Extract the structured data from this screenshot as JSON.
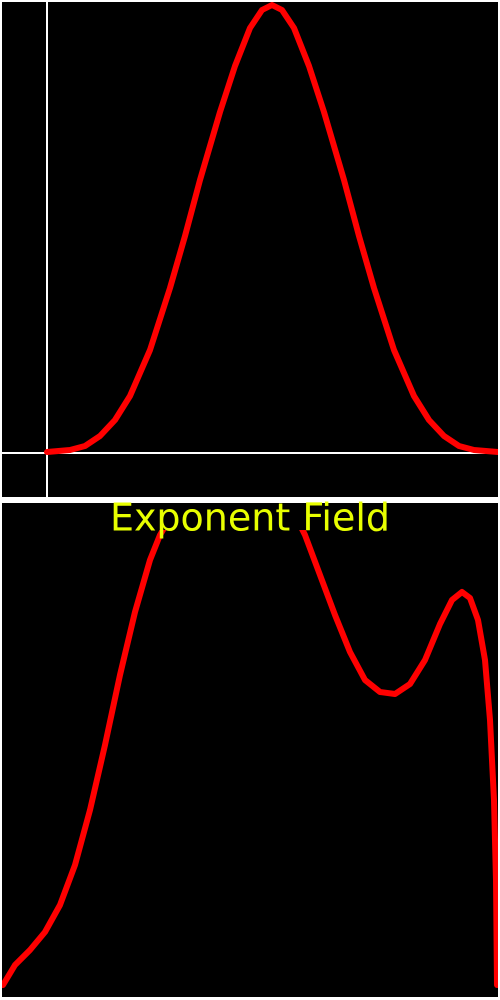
{
  "title": "Exponent Field"
}
